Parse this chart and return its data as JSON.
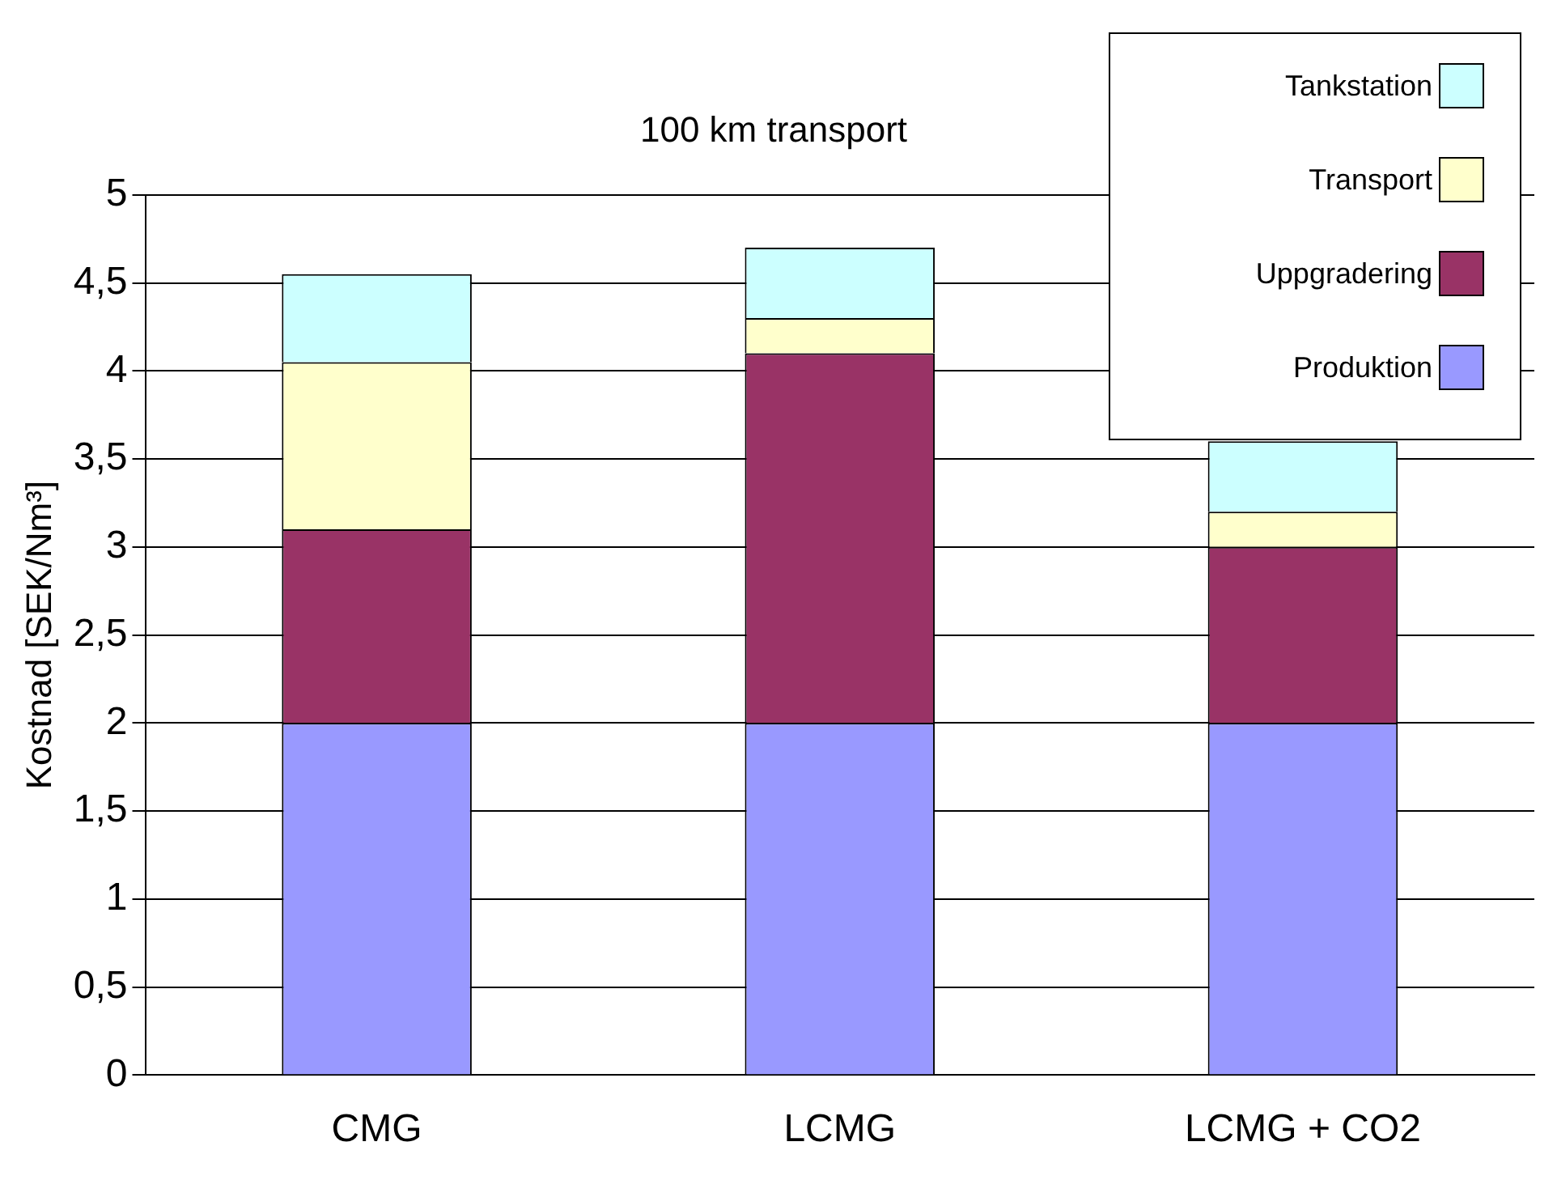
{
  "chart_data": {
    "type": "bar",
    "title": "100 km transport",
    "ylabel": "Kostnad [SEK/Nm³]",
    "categories": [
      "CMG",
      "LCMG",
      "LCMG + CO2"
    ],
    "stacked": true,
    "series": [
      {
        "name": "Produktion",
        "color": "#9999ff",
        "values": [
          2,
          2,
          2
        ]
      },
      {
        "name": "Uppgradering",
        "color": "#993366",
        "values": [
          1.1,
          2.1,
          1.0
        ]
      },
      {
        "name": "Transport",
        "color": "#ffffcc",
        "values": [
          0.95,
          0.2,
          0.2
        ]
      },
      {
        "name": "Tankstation",
        "color": "#ccffff",
        "values": [
          0.5,
          0.4,
          0.4
        ]
      }
    ],
    "ylim": [
      0,
      5
    ],
    "yticks": [
      0,
      {
        "value": 0.5,
        "label": "0,5"
      },
      1,
      {
        "value": 1.5,
        "label": "1,5"
      },
      2,
      {
        "value": 2.5,
        "label": "2,5"
      },
      3,
      {
        "value": 3.5,
        "label": "3,5"
      },
      4,
      {
        "value": 4.5,
        "label": "4,5"
      },
      5
    ],
    "grid": "y",
    "legend": "top right"
  }
}
